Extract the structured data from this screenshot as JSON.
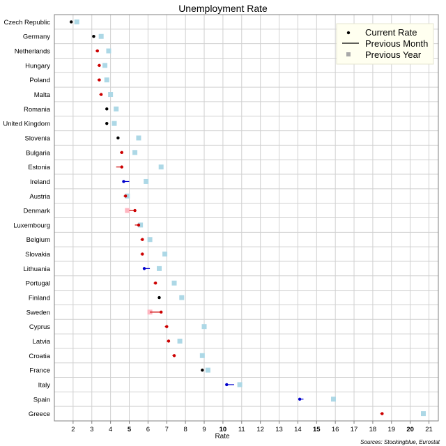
{
  "chart_data": {
    "type": "scatter",
    "title": "Unemployment Rate",
    "xlabel": "Rate",
    "source": "Sources: Stockingblue, Eurostat",
    "xlim": [
      1,
      21.5
    ],
    "xticks": [
      2,
      3,
      4,
      5,
      6,
      7,
      8,
      9,
      10,
      11,
      12,
      13,
      14,
      15,
      16,
      17,
      18,
      19,
      20,
      21
    ],
    "xtick_labels": [
      "2",
      "3",
      "4",
      "5",
      "6",
      "7",
      "8",
      "9",
      "10",
      "11",
      "12",
      "13",
      "14",
      "15",
      "16",
      "17",
      "18",
      "19",
      "20",
      "21"
    ],
    "grid": true,
    "legend_position": "top-right",
    "legend": {
      "current": "Current Rate",
      "previous_month": "Previous Month",
      "previous_year": "Previous Year"
    },
    "colors": {
      "improved": "#0000cc",
      "worsened": "#cc0000",
      "unchanged": "#000000",
      "prev_year_lower": "#add8e6",
      "prev_year_higher": "#ffb6c1",
      "grid": "#d0d0d0",
      "legend_bg": "#fffff0"
    },
    "categories": [
      "Czech Republic",
      "Germany",
      "Netherlands",
      "Hungary",
      "Poland",
      "Malta",
      "Romania",
      "United Kingdom",
      "Slovenia",
      "Bulgaria",
      "Estonia",
      "Ireland",
      "Austria",
      "Denmark",
      "Luxembourg",
      "Belgium",
      "Slovakia",
      "Lithuania",
      "Portugal",
      "Finland",
      "Sweden",
      "Cyprus",
      "Latvia",
      "Croatia",
      "France",
      "Italy",
      "Spain",
      "Greece"
    ],
    "series": [
      {
        "name": "Current Rate",
        "values": [
          1.9,
          3.1,
          3.3,
          3.4,
          3.4,
          3.5,
          3.8,
          3.8,
          4.4,
          4.6,
          4.6,
          4.7,
          4.8,
          5.3,
          5.5,
          5.7,
          5.7,
          5.8,
          6.4,
          6.6,
          6.7,
          7.0,
          7.1,
          7.4,
          8.9,
          10.2,
          14.1,
          18.5
        ]
      },
      {
        "name": "Previous Month",
        "values": [
          1.9,
          3.1,
          3.2,
          3.3,
          3.3,
          3.4,
          3.8,
          3.8,
          4.4,
          4.5,
          4.3,
          5.0,
          4.7,
          5.0,
          5.3,
          5.6,
          5.6,
          6.1,
          6.3,
          6.6,
          6.1,
          6.9,
          7.0,
          7.3,
          8.9,
          10.6,
          14.3,
          18.4
        ]
      },
      {
        "name": "Previous Year",
        "values": [
          2.2,
          3.5,
          3.9,
          3.7,
          3.8,
          4.0,
          4.3,
          4.2,
          5.5,
          5.3,
          6.7,
          5.9,
          4.9,
          4.9,
          5.6,
          6.1,
          6.9,
          6.6,
          7.4,
          7.8,
          6.1,
          9.0,
          7.7,
          8.9,
          9.2,
          10.9,
          15.9,
          20.7
        ]
      }
    ]
  }
}
